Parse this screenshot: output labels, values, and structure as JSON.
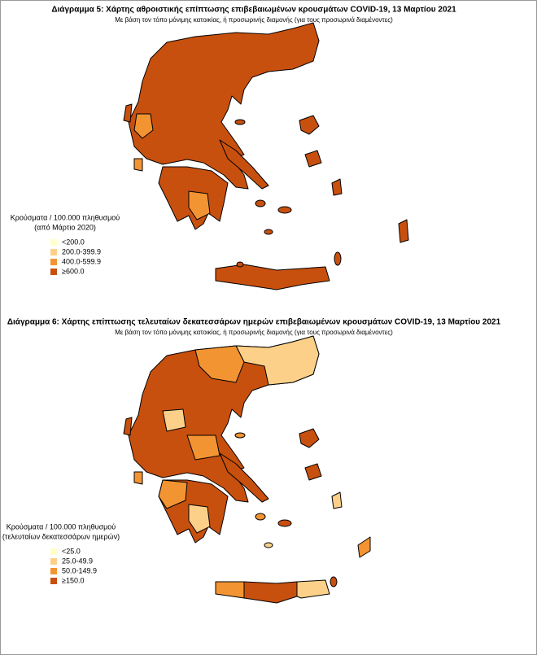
{
  "figures": [
    {
      "title": "Διάγραμμα 5: Χάρτης αθροιστικής επίπτωσης επιβεβαιωμένων κρουσμάτων COVID-19, 13 Μαρτίου 2021",
      "subtitle": "Με βάση τον τόπο μόνιμης κατοικίας, ή προσωρινής διαμονής (για τους προσωρινά διαμένοντες)",
      "legend": {
        "title": [
          "Κρούσματα / 100.000 πληθυσμού",
          "(από Μάρτιο 2020)"
        ],
        "items": [
          {
            "label": "<200.0",
            "color": "#ffffcc"
          },
          {
            "label": "200.0-399.9",
            "color": "#fdd08a"
          },
          {
            "label": "400.0-599.9",
            "color": "#f39433"
          },
          {
            "label": "≥600.0",
            "color": "#c8500e"
          }
        ]
      }
    },
    {
      "title": "Διάγραμμα 6: Χάρτης επίπτωσης τελευταίων δεκατεσσάρων ημερών επιβεβαιωμένων κρουσμάτων COVID-19, 13 Μαρτίου 2021",
      "subtitle": "Με βάση τον τόπο μόνιμης κατοικίας, ή προσωρινής διαμονής (για τους προσωρινά διαμένοντες)",
      "legend": {
        "title": [
          "Κρούσματα / 100.000 πληθυσμού",
          "(τελευταίων δεκατεσσάρων ημερών)"
        ],
        "items": [
          {
            "label": "<25.0",
            "color": "#ffffcc"
          },
          {
            "label": "25.0-49.9",
            "color": "#fdd08a"
          },
          {
            "label": "50.0-149.9",
            "color": "#f39433"
          },
          {
            "label": "≥150.0",
            "color": "#c8500e"
          }
        ]
      }
    }
  ]
}
